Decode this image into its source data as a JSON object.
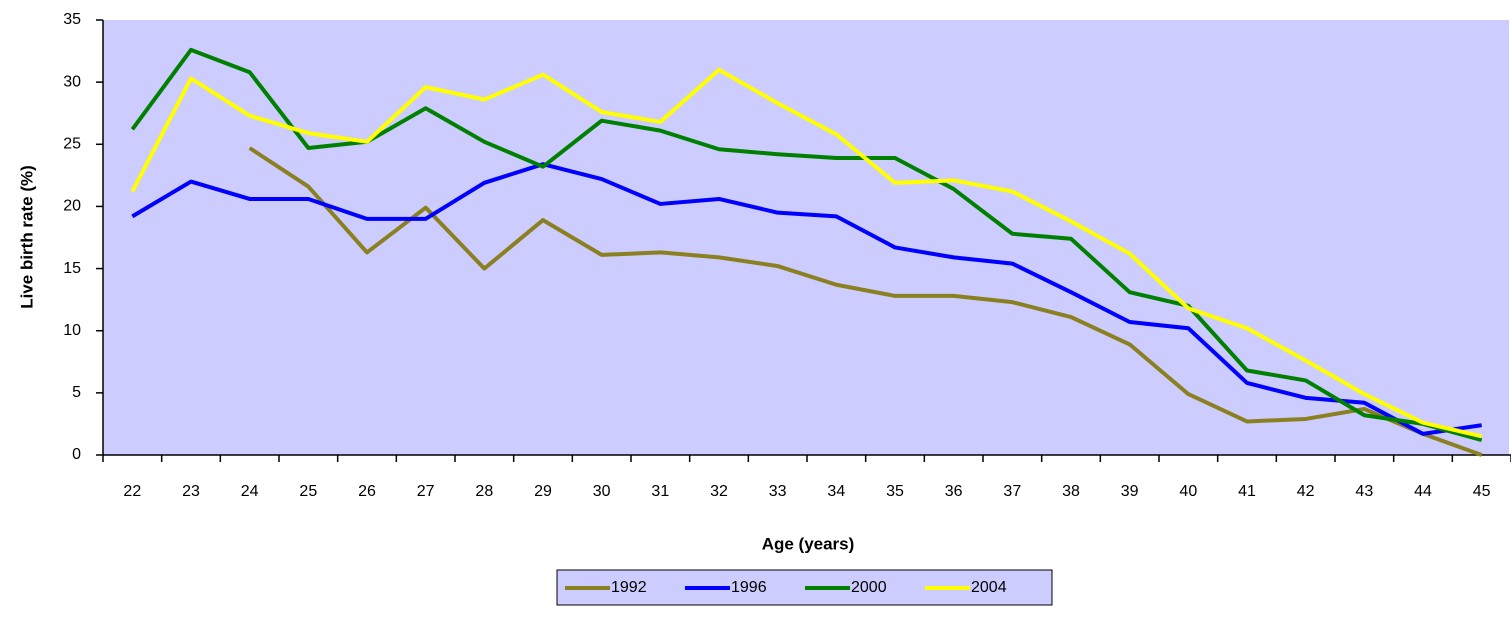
{
  "chart_data": {
    "type": "line",
    "x_label": "Age (years)",
    "y_label": "Live birth rate (%)",
    "categories": [
      "22",
      "23",
      "24",
      "25",
      "26",
      "27",
      "28",
      "29",
      "30",
      "31",
      "32",
      "33",
      "34",
      "35",
      "36",
      "37",
      "38",
      "39",
      "40",
      "41",
      "42",
      "43",
      "44",
      "45"
    ],
    "series": [
      {
        "name": "1992",
        "color": "#8b8020",
        "values": [
          null,
          null,
          24.7,
          21.6,
          16.3,
          19.9,
          15.0,
          18.9,
          16.1,
          16.3,
          15.9,
          15.2,
          13.7,
          12.8,
          12.8,
          12.3,
          11.1,
          8.9,
          4.9,
          2.7,
          2.9,
          3.7,
          1.7,
          0
        ]
      },
      {
        "name": "1996",
        "color": "#0000ff",
        "values": [
          19.2,
          22.0,
          20.6,
          20.6,
          19.0,
          19.0,
          21.9,
          23.4,
          22.2,
          20.2,
          20.6,
          19.5,
          19.2,
          16.7,
          15.9,
          15.4,
          13.1,
          10.7,
          10.2,
          5.8,
          4.6,
          4.2,
          1.7,
          2.4
        ]
      },
      {
        "name": "2000",
        "color": "#008000",
        "values": [
          26.2,
          32.6,
          30.8,
          24.7,
          25.2,
          27.9,
          25.2,
          23.2,
          26.9,
          26.1,
          24.6,
          24.2,
          23.9,
          23.9,
          21.4,
          17.8,
          17.4,
          13.1,
          12.0,
          6.8,
          6.0,
          3.2,
          2.5,
          1.2
        ]
      },
      {
        "name": "2004",
        "color": "#ffff00",
        "values": [
          21.2,
          30.3,
          27.3,
          25.9,
          25.2,
          29.6,
          28.6,
          30.6,
          27.6,
          26.8,
          31.0,
          28.3,
          25.8,
          21.9,
          22.1,
          21.2,
          18.8,
          16.2,
          11.8,
          10.2,
          7.6,
          4.9,
          2.6,
          1.5
        ]
      }
    ],
    "ylim": [
      0,
      35
    ],
    "yticks": [
      0,
      5,
      10,
      15,
      20,
      25,
      30,
      35
    ],
    "legend": "bottom"
  }
}
